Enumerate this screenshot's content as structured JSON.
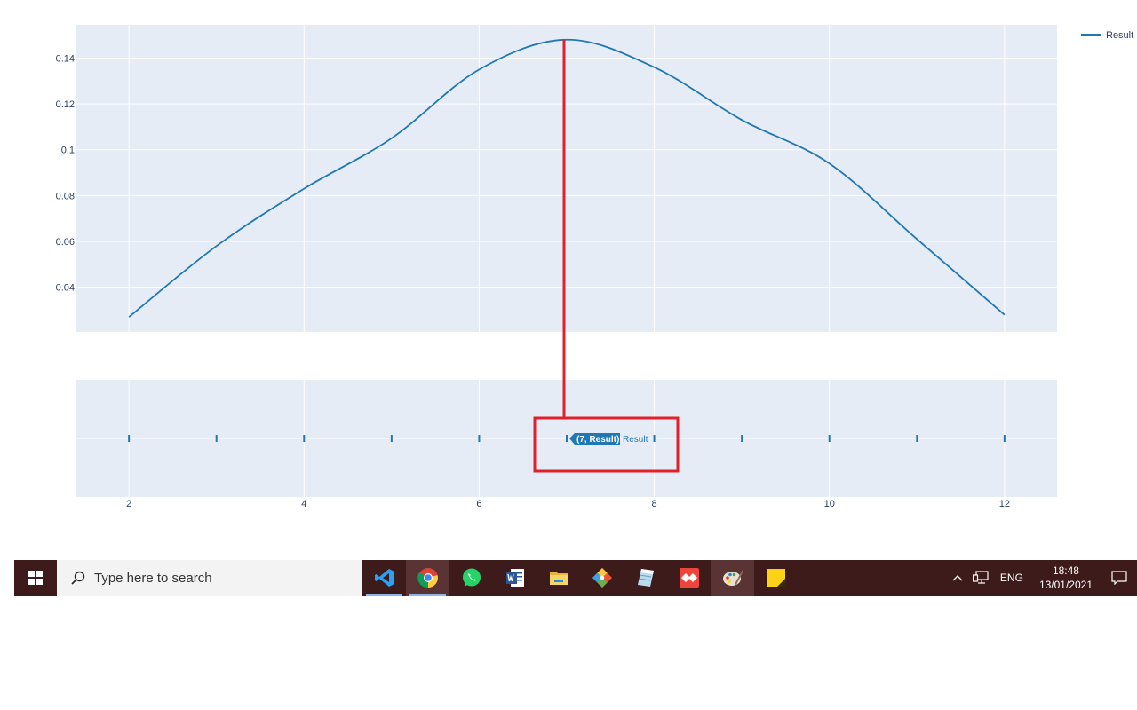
{
  "chart_data": {
    "type": "line",
    "title": "",
    "xlabel": "",
    "ylabel": "",
    "x": [
      2,
      3,
      4,
      5,
      6,
      7,
      8,
      9,
      10,
      11,
      12
    ],
    "series": [
      {
        "name": "Result",
        "color": "#1f77b4",
        "values": [
          0.027,
          0.058,
          0.083,
          0.105,
          0.135,
          0.148,
          0.136,
          0.113,
          0.094,
          0.061,
          0.028
        ]
      }
    ],
    "xlim": [
      1.4,
      12.6
    ],
    "ylim": [
      0.0205,
      0.1545
    ],
    "x_ticks": [
      2,
      4,
      6,
      8,
      10,
      12
    ],
    "x_tick_labels": [
      "2",
      "4",
      "6",
      "8",
      "10",
      "12"
    ],
    "y_ticks": [
      0.04,
      0.06,
      0.08,
      0.1,
      0.12,
      0.14
    ],
    "y_tick_labels": [
      "0.04",
      "0.06",
      "0.08",
      "0.1",
      "0.12",
      "0.14"
    ],
    "grid": true,
    "legend_position": "top-right",
    "plot_background": "#e5ecf6",
    "rangeslider": {
      "markers_x": [
        2,
        3,
        4,
        5,
        6,
        7,
        8,
        9,
        10,
        11,
        12
      ],
      "hover_label": "(7, Result)",
      "hover_trace_name": "Result"
    },
    "annotation_color": "#e0202a"
  },
  "taskbar": {
    "search_placeholder": "Type here to search",
    "apps": [
      {
        "icon": "vscode-icon",
        "state": "running"
      },
      {
        "icon": "chrome-icon",
        "state": "active"
      },
      {
        "icon": "whatsapp-icon",
        "state": "none"
      },
      {
        "icon": "word-icon",
        "state": "none"
      },
      {
        "icon": "file-explorer-icon",
        "state": "none"
      },
      {
        "icon": "git-icon",
        "state": "none"
      },
      {
        "icon": "notebook-icon",
        "state": "none"
      },
      {
        "icon": "anydesk-icon",
        "state": "none"
      },
      {
        "icon": "paint-icon",
        "state": "active"
      },
      {
        "icon": "sticky-notes-icon",
        "state": "none"
      }
    ],
    "tray": {
      "language": "ENG",
      "time": "18:48",
      "date": "13/01/2021"
    }
  }
}
